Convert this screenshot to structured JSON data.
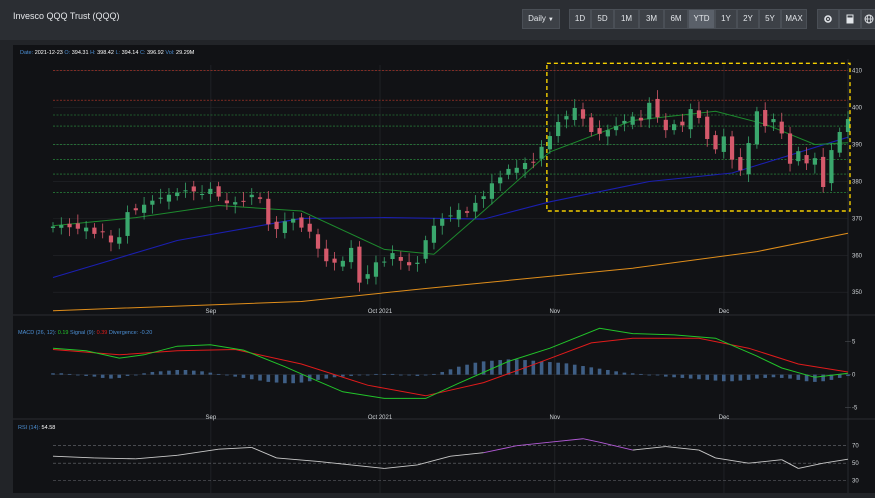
{
  "window": {
    "title": "Invesco QQQ Trust (QQQ)"
  },
  "toolbar": {
    "interval": "Daily",
    "ranges": [
      "1D",
      "5D",
      "1M",
      "3M",
      "6M",
      "YTD",
      "1Y",
      "2Y",
      "5Y",
      "MAX"
    ],
    "active_range": "YTD",
    "icons": [
      "settings-icon",
      "calculator-icon",
      "globe-icon"
    ]
  },
  "header": {
    "date_label": "Date:",
    "date": "2021-12-23",
    "o_label": "O:",
    "open": "394.31",
    "h_label": "H:",
    "high": "398.42",
    "l_label": "L:",
    "low": "394.14",
    "c_label": "C:",
    "close": "396.92",
    "vol_label": "Vol:",
    "volume": "29.29M"
  },
  "macd": {
    "title": "MACD (26, 12):",
    "value": "0.19",
    "signal_label": "Signal (9):",
    "signal": "0.39",
    "divergence_label": "Divergence:",
    "divergence": "-0.20"
  },
  "rsi": {
    "title": "RSI (14):",
    "value": "54.58"
  },
  "colors": {
    "background": "#111215",
    "up": "#3aa76d",
    "down": "#d4596b",
    "sma_fast": "#1d8a2e",
    "sma_mid": "#1b1fb0",
    "sma_slow": "#e08e1b",
    "macd": "#22c42a",
    "signal": "#e01b1b",
    "histogram": "#3f5f86",
    "rsi": "#c9c9c9",
    "highlight": "#f5d000"
  },
  "chart_data": [
    {
      "type": "candlestick",
      "y_ticks": [
        350,
        360,
        370,
        380,
        390,
        400,
        410
      ],
      "ylim": [
        346,
        411
      ],
      "x_tick_labels": [
        {
          "label": "Sep",
          "date": "2021-09-01"
        },
        {
          "label": "Oct 2021",
          "date": "2021-10-01"
        },
        {
          "label": "Nov",
          "date": "2021-11-01"
        },
        {
          "label": "Dec",
          "date": "2021-12-01"
        }
      ],
      "date_range": [
        "2021-08-04",
        "2021-12-23"
      ],
      "horizontal_levels_red": [
        410,
        402
      ],
      "horizontal_levels_green": [
        398,
        395,
        390,
        386,
        382,
        377
      ],
      "close": [
        367.8,
        368.2,
        367.6,
        367.2,
        367.5,
        365.8,
        366.4,
        363.5,
        364.9,
        371.7,
        372.2,
        373.7,
        374.8,
        375.6,
        376.4,
        377.0,
        377.6,
        377.3,
        376.6,
        378.0,
        375.9,
        374.1,
        374.4,
        374.7,
        376.4,
        375.3,
        368.4,
        367.1,
        369.2,
        369.9,
        367.5,
        366.4,
        361.8,
        358.4,
        358.0,
        358.5,
        362.0,
        352.6,
        354.9,
        358.1,
        358.3,
        360.6,
        358.5,
        357.3,
        358.0,
        364.1,
        368.0,
        369.9,
        370.8,
        372.3,
        371.5,
        374.2,
        376.0,
        379.5,
        381.1,
        383.4,
        383.7,
        385.0,
        385.1,
        389.4,
        392.3,
        396.1,
        397.7,
        399.9,
        397.0,
        393.4,
        392.9,
        393.9,
        395.0,
        396.4,
        397.6,
        396.5,
        401.3,
        397.4,
        393.9,
        395.5,
        395.2,
        399.6,
        397.2,
        391.5,
        388.7,
        392.2,
        385.9,
        383.0,
        390.4,
        399.0,
        395.0,
        396.9,
        393.0,
        384.8,
        388.2,
        384.9,
        386.3,
        378.5,
        388.5,
        393.4,
        396.9
      ],
      "sma_fast": [
        [
          0,
          368.0
        ],
        [
          10,
          370.2
        ],
        [
          20,
          373.5
        ],
        [
          30,
          372.0
        ],
        [
          40,
          361.6
        ],
        [
          46,
          360.3
        ],
        [
          52,
          372.0
        ],
        [
          60,
          388.0
        ],
        [
          70,
          396.5
        ],
        [
          80,
          399.0
        ],
        [
          86,
          395.5
        ],
        [
          92,
          390.0
        ],
        [
          96,
          390.5
        ]
      ],
      "sma_mid": [
        [
          0,
          354.0
        ],
        [
          15,
          364.0
        ],
        [
          30,
          370.0
        ],
        [
          40,
          370.2
        ],
        [
          52,
          369.8
        ],
        [
          60,
          374.5
        ],
        [
          72,
          380.0
        ],
        [
          82,
          382.3
        ],
        [
          96,
          392.0
        ]
      ],
      "sma_slow": [
        [
          0,
          345.0
        ],
        [
          30,
          347.5
        ],
        [
          45,
          351.0
        ],
        [
          70,
          356.5
        ],
        [
          85,
          361.0
        ],
        [
          96,
          366.0
        ]
      ],
      "highlight_box": {
        "x_from_index": 60,
        "x_to_index": 96,
        "y_from": 372,
        "y_to": 412
      }
    },
    {
      "type": "line",
      "name": "MACD",
      "y_ticks": [
        5,
        0,
        -5
      ],
      "ylim": [
        -5.5,
        7.5
      ],
      "macd_line": [
        [
          0,
          4.0
        ],
        [
          4,
          3.6
        ],
        [
          8,
          2.5
        ],
        [
          11,
          3.0
        ],
        [
          15,
          4.3
        ],
        [
          19,
          4.5
        ],
        [
          23,
          3.7
        ],
        [
          28,
          1.2
        ],
        [
          32,
          -1.0
        ],
        [
          35,
          -2.6
        ],
        [
          40,
          -3.6
        ],
        [
          45,
          -3.6
        ],
        [
          49,
          -1.3
        ],
        [
          55,
          2.0
        ],
        [
          60,
          4.0
        ],
        [
          66,
          7.0
        ],
        [
          70,
          6.2
        ],
        [
          75,
          6.0
        ],
        [
          80,
          5.5
        ],
        [
          85,
          2.8
        ],
        [
          88,
          1.0
        ],
        [
          92,
          -0.4
        ],
        [
          96,
          0.2
        ]
      ],
      "signal_line": [
        [
          0,
          3.8
        ],
        [
          8,
          3.0
        ],
        [
          15,
          3.6
        ],
        [
          22,
          3.8
        ],
        [
          30,
          1.6
        ],
        [
          38,
          -1.6
        ],
        [
          45,
          -3.2
        ],
        [
          52,
          -1.2
        ],
        [
          58,
          1.5
        ],
        [
          65,
          4.8
        ],
        [
          70,
          5.5
        ],
        [
          78,
          5.5
        ],
        [
          84,
          4.0
        ],
        [
          90,
          1.6
        ],
        [
          96,
          0.4
        ]
      ],
      "divergence": [
        0.2,
        0.2,
        0.1,
        0.0,
        -0.2,
        -0.3,
        -0.5,
        -0.6,
        -0.5,
        -0.2,
        0.0,
        0.2,
        0.4,
        0.5,
        0.6,
        0.7,
        0.7,
        0.6,
        0.5,
        0.3,
        0.1,
        -0.1,
        -0.3,
        -0.5,
        -0.7,
        -0.9,
        -1.1,
        -1.2,
        -1.3,
        -1.3,
        -1.2,
        -1.0,
        -0.8,
        -0.6,
        -0.4,
        -0.3,
        -0.2,
        -0.1,
        0.0,
        0.1,
        0.1,
        0.1,
        0.0,
        -0.1,
        -0.2,
        -0.1,
        0.1,
        0.4,
        0.8,
        1.2,
        1.5,
        1.8,
        2.0,
        2.1,
        2.2,
        2.3,
        2.3,
        2.2,
        2.1,
        2.0,
        1.9,
        1.8,
        1.7,
        1.5,
        1.3,
        1.1,
        0.9,
        0.7,
        0.5,
        0.3,
        0.2,
        0.1,
        0.0,
        -0.1,
        -0.3,
        -0.4,
        -0.5,
        -0.6,
        -0.7,
        -0.8,
        -0.9,
        -1.0,
        -1.0,
        -0.9,
        -0.8,
        -0.6,
        -0.5,
        -0.4,
        -0.5,
        -0.6,
        -0.8,
        -1.0,
        -1.1,
        -1.0,
        -0.8,
        -0.5,
        -0.2
      ]
    },
    {
      "type": "line",
      "name": "RSI",
      "y_ticks": [
        70,
        50,
        30
      ],
      "ylim": [
        25,
        80
      ],
      "rsi": [
        [
          0,
          58
        ],
        [
          5,
          56
        ],
        [
          10,
          55
        ],
        [
          15,
          59
        ],
        [
          20,
          66
        ],
        [
          24,
          68
        ],
        [
          27,
          56
        ],
        [
          32,
          52
        ],
        [
          36,
          48
        ],
        [
          40,
          44
        ],
        [
          44,
          48
        ],
        [
          48,
          58
        ],
        [
          52,
          62
        ],
        [
          56,
          70
        ],
        [
          60,
          74
        ],
        [
          64,
          78
        ],
        [
          66,
          74
        ],
        [
          70,
          65
        ],
        [
          74,
          69
        ],
        [
          78,
          65
        ],
        [
          80,
          56
        ],
        [
          84,
          50
        ],
        [
          88,
          54
        ],
        [
          90,
          44
        ],
        [
          93,
          50
        ],
        [
          96,
          54.6
        ]
      ]
    }
  ]
}
